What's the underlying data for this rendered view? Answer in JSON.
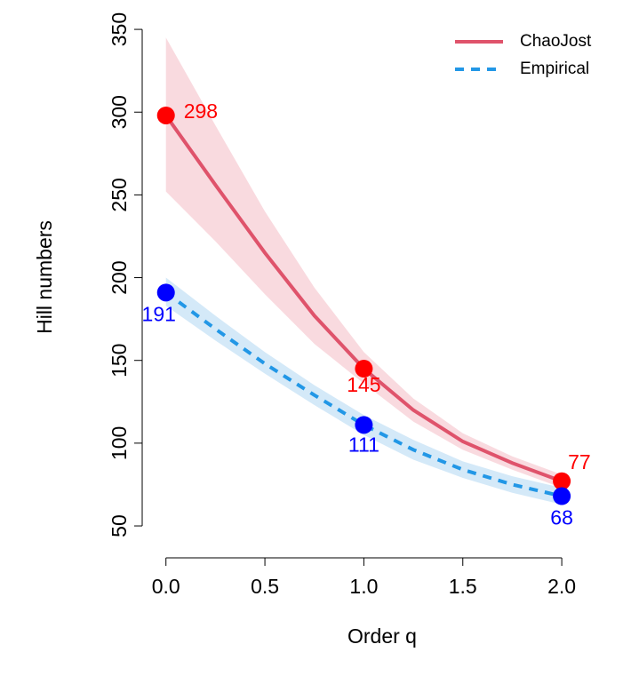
{
  "chart_data": {
    "type": "line",
    "x_label": "Order  q",
    "y_label": "Hill  numbers",
    "xlim": [
      -0.12,
      2.26
    ],
    "ylim": [
      30.7,
      359.7
    ],
    "xticks": [
      {
        "value": 0,
        "label": "0.0"
      },
      0.5,
      {
        "value": 1,
        "label": "1.0"
      },
      1.5,
      {
        "value": 2,
        "label": "2.0"
      }
    ],
    "yticks": [
      50,
      100,
      150,
      200,
      250,
      300,
      350
    ],
    "legend": "top-right",
    "series": [
      {
        "name": "ChaoJost",
        "color": "#DF536B",
        "band_color": "#F8D4D9",
        "dashed": false,
        "x": [
          0,
          0.25,
          0.5,
          0.75,
          1,
          1.25,
          1.5,
          1.75,
          2
        ],
        "values": [
          298,
          256,
          215,
          177,
          145,
          120,
          101,
          88,
          77
        ],
        "lower": [
          252,
          222,
          190,
          160,
          136,
          113,
          96,
          84,
          73
        ],
        "upper": [
          345,
          292,
          240,
          194,
          155,
          127,
          106,
          92,
          81
        ]
      },
      {
        "name": "Empirical",
        "color": "#2297E6",
        "band_color": "#CDE5F7",
        "dashed": true,
        "x": [
          0,
          0.25,
          0.5,
          0.75,
          1,
          1.25,
          1.5,
          1.75,
          2
        ],
        "values": [
          191,
          169,
          148,
          129,
          111,
          96,
          84,
          75,
          68
        ],
        "lower": [
          183,
          162,
          142,
          123,
          105,
          90,
          79,
          70,
          63
        ],
        "upper": [
          200,
          177,
          155,
          135,
          117,
          102,
          89,
          80,
          73
        ]
      }
    ],
    "points": [
      {
        "color": "#FF0000",
        "x": [
          0,
          1,
          2
        ],
        "values": [
          298,
          145,
          77
        ]
      },
      {
        "color": "#0000FF",
        "x": [
          0,
          1,
          2
        ],
        "values": [
          191,
          111,
          68
        ]
      }
    ]
  }
}
